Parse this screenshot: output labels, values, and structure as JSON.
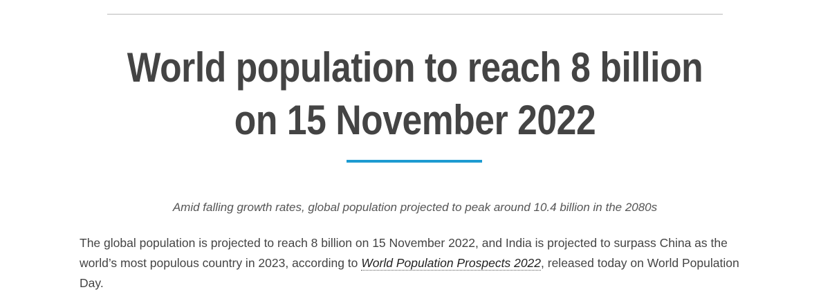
{
  "headline": {
    "line1": "World population to reach 8 billion",
    "line2": "on 15 November 2022"
  },
  "subtitle": "Amid falling growth rates, global population projected to peak around 10.4 billion in the 2080s",
  "body": {
    "before_link": "The global population is projected to reach 8 billion on 15 November 2022, and India is projected to surpass China as the world’s most populous country in 2023, according to ",
    "link_text": "World Population Prospects 2022",
    "after_link": ", released today on World Population Day."
  },
  "colors": {
    "accent": "#1d9bd1",
    "text": "#444444"
  }
}
